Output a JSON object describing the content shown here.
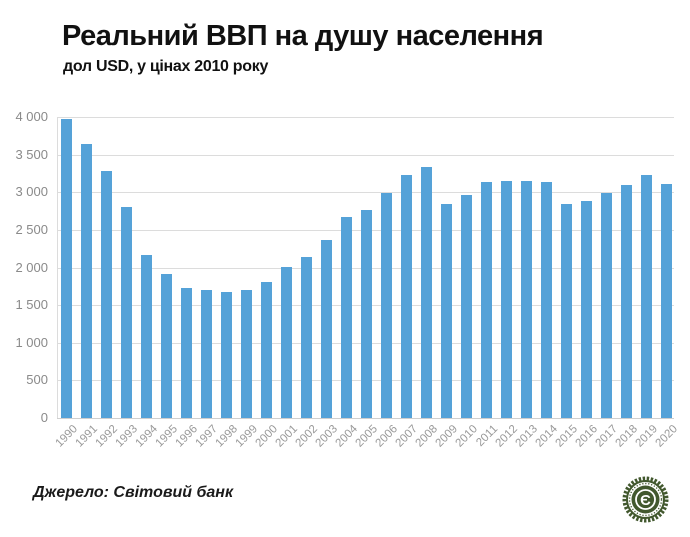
{
  "header": {
    "title": "Реальний ВВП на душу населення",
    "subtitle": "дол USD,  у цінах 2010 року"
  },
  "footer": {
    "source": "Джерело: Світовий банк",
    "logo_letter": "Є"
  },
  "colors": {
    "bar": "#55a2d8",
    "grid": "#dcdcdc",
    "axis_text": "#8a8a8a",
    "title_text": "#111111",
    "logo_green": "#42582e"
  },
  "chart_data": {
    "type": "bar",
    "title": "Реальний ВВП на душу населення",
    "subtitle": "дол USD, у цінах 2010 року",
    "xlabel": "",
    "ylabel": "дол USD",
    "ylim": [
      0,
      4000
    ],
    "ytick_step": 500,
    "ytick_labels": [
      "0",
      "500",
      "1 000",
      "1 500",
      "2 000",
      "2 500",
      "3 000",
      "3 500",
      "4 000"
    ],
    "grid": true,
    "legend": false,
    "categories": [
      "1990",
      "1991",
      "1992",
      "1993",
      "1994",
      "1995",
      "1996",
      "1997",
      "1998",
      "1999",
      "2000",
      "2001",
      "2002",
      "2003",
      "2004",
      "2005",
      "2006",
      "2007",
      "2008",
      "2009",
      "2010",
      "2011",
      "2012",
      "2013",
      "2014",
      "2015",
      "2016",
      "2017",
      "2018",
      "2019",
      "2020"
    ],
    "values": [
      3970,
      3640,
      3280,
      2810,
      2170,
      1910,
      1730,
      1700,
      1680,
      1700,
      1810,
      2010,
      2140,
      2360,
      2670,
      2770,
      2990,
      3230,
      3330,
      2850,
      2970,
      3140,
      3150,
      3150,
      3130,
      2840,
      2890,
      2990,
      3100,
      3230,
      3110
    ]
  }
}
